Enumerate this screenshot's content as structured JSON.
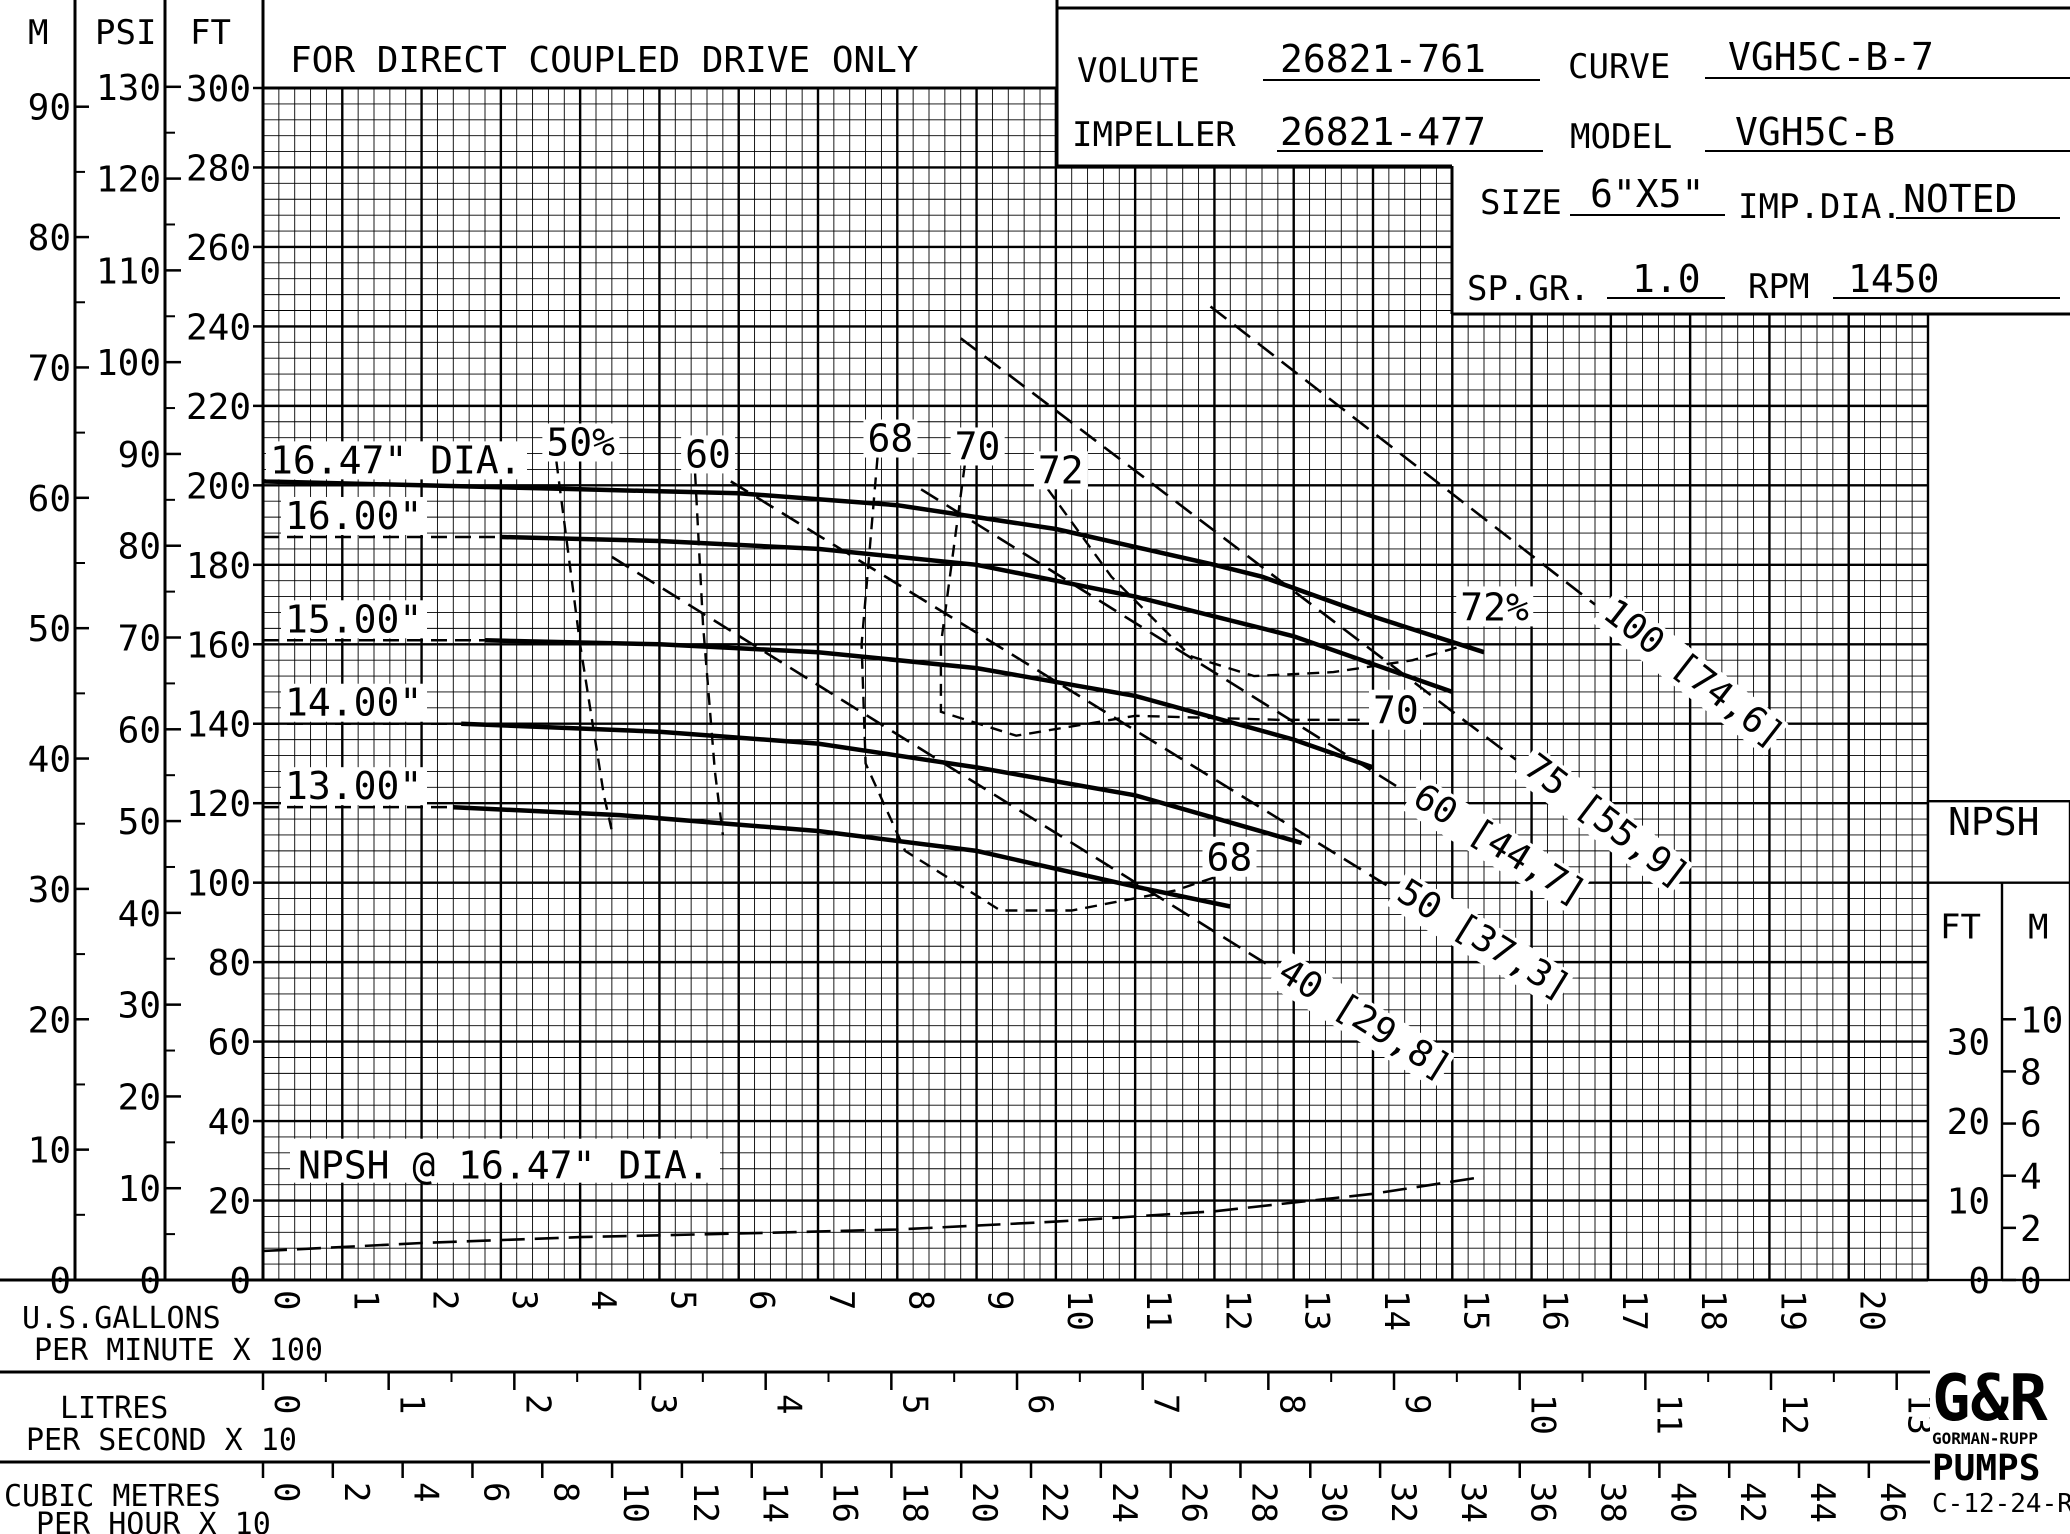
{
  "header": {
    "note": "FOR DIRECT COUPLED DRIVE ONLY",
    "volute_label": "VOLUTE",
    "volute": "26821-761",
    "curve_label": "CURVE",
    "curve": "VGH5C-B-7",
    "impeller_label": "IMPELLER",
    "impeller": "26821-477",
    "model_label": "MODEL",
    "model": "VGH5C-B",
    "size_label": "SIZE",
    "size": "6\"X5\"",
    "impdia_label": "IMP.DIA.",
    "impdia": "NOTED",
    "spgr_label": "SP.GR.",
    "spgr": "1.0",
    "rpm_label": "RPM",
    "rpm": "1450"
  },
  "logo": {
    "mark": "G&R",
    "line1": "GORMAN-RUPP",
    "line2": "PUMPS",
    "code": "C-12-24-R"
  },
  "chart_data": {
    "type": "line",
    "x_axes": [
      {
        "label_line1": "U.S.GALLONS",
        "label_line2": "PER MINUTE X 100",
        "range": [
          0,
          21
        ],
        "ticks": [
          "0",
          "1",
          "2",
          "3",
          "4",
          "5",
          "6",
          "7",
          "8",
          "9",
          "10",
          "11",
          "12",
          "13",
          "14",
          "15",
          "16",
          "17",
          "18",
          "19",
          "20"
        ]
      },
      {
        "label_line1": "LITRES",
        "label_line2": "PER SECOND X 10",
        "range": [
          0,
          13.25
        ],
        "ticks": [
          "0",
          "1",
          "2",
          "3",
          "4",
          "5",
          "6",
          "7",
          "8",
          "9",
          "10",
          "11",
          "12",
          "13"
        ]
      },
      {
        "label_line1": "CUBIC METRES",
        "label_line2": "PER HOUR X 10",
        "range": [
          0,
          47.7
        ],
        "ticks": [
          "0",
          "2",
          "4",
          "6",
          "8",
          "10",
          "12",
          "14",
          "16",
          "18",
          "20",
          "22",
          "24",
          "26",
          "28",
          "30",
          "32",
          "34",
          "36",
          "38",
          "40",
          "42",
          "44",
          "46"
        ]
      }
    ],
    "y_axes": [
      {
        "label": "FT",
        "range": [
          0,
          300
        ],
        "ticks": [
          "0",
          "20",
          "40",
          "60",
          "80",
          "100",
          "120",
          "140",
          "160",
          "180",
          "200",
          "220",
          "240",
          "260",
          "280",
          "300"
        ]
      },
      {
        "label": "PSI",
        "range": [
          0,
          130
        ],
        "ticks": [
          "0",
          "10",
          "20",
          "30",
          "40",
          "50",
          "60",
          "70",
          "80",
          "90",
          "100",
          "110",
          "120",
          "130"
        ]
      },
      {
        "label": "M",
        "range": [
          0,
          91.4
        ],
        "ticks": [
          "0",
          "10",
          "20",
          "30",
          "40",
          "50",
          "60",
          "70",
          "80",
          "90"
        ]
      }
    ],
    "npsh_axis": {
      "title": "NPSH",
      "ft_label": "FT",
      "m_label": "M",
      "ft_ticks": [
        "0",
        "10",
        "20",
        "30"
      ],
      "m_ticks": [
        "0",
        "2",
        "4",
        "6",
        "8",
        "10"
      ]
    },
    "head_curves": [
      {
        "name": "16.47\" DIA.",
        "points": [
          [
            0,
            201
          ],
          [
            2,
            200
          ],
          [
            4,
            199
          ],
          [
            6,
            198
          ],
          [
            8,
            195
          ],
          [
            10,
            189
          ],
          [
            12,
            180
          ],
          [
            12.6,
            177
          ],
          [
            14,
            167
          ],
          [
            15.4,
            158
          ]
        ]
      },
      {
        "name": "16.00\"",
        "points": [
          [
            3,
            187
          ],
          [
            5,
            186
          ],
          [
            7,
            184
          ],
          [
            9,
            180
          ],
          [
            11,
            172
          ],
          [
            13,
            162
          ],
          [
            15,
            148
          ]
        ]
      },
      {
        "name": "15.00\"",
        "points": [
          [
            2.8,
            161
          ],
          [
            5,
            160
          ],
          [
            7,
            158
          ],
          [
            9,
            154
          ],
          [
            11,
            147
          ],
          [
            13,
            136
          ],
          [
            14,
            129
          ]
        ]
      },
      {
        "name": "14.00\"",
        "points": [
          [
            2.5,
            140
          ],
          [
            5,
            138
          ],
          [
            7,
            135
          ],
          [
            9,
            129
          ],
          [
            11,
            122
          ],
          [
            13.1,
            110
          ]
        ]
      },
      {
        "name": "13.00\"",
        "points": [
          [
            2.4,
            119
          ],
          [
            4.5,
            117
          ],
          [
            7,
            113
          ],
          [
            9,
            108
          ],
          [
            11,
            99
          ],
          [
            12.2,
            94
          ]
        ]
      }
    ],
    "efficiency_curves": [
      {
        "label": "50%",
        "points": [
          [
            3.7,
            206
          ],
          [
            4.0,
            160
          ],
          [
            4.3,
            122
          ],
          [
            4.4,
            113
          ]
        ]
      },
      {
        "label": "60",
        "points": [
          [
            5.45,
            203
          ],
          [
            5.55,
            165
          ],
          [
            5.7,
            128
          ],
          [
            5.8,
            112
          ]
        ]
      },
      {
        "label": "68",
        "points": [
          [
            7.75,
            207
          ],
          [
            7.55,
            160
          ],
          [
            7.6,
            130
          ],
          [
            8.1,
            108
          ],
          [
            9.3,
            93
          ],
          [
            10.2,
            93
          ],
          [
            11.5,
            98
          ],
          [
            12.1,
            102
          ]
        ]
      },
      {
        "label": "70",
        "points": [
          [
            8.85,
            205
          ],
          [
            8.55,
            160
          ],
          [
            8.55,
            143
          ],
          [
            9.5,
            137
          ],
          [
            11,
            142
          ],
          [
            12.8,
            141
          ],
          [
            13.9,
            141
          ]
        ]
      },
      {
        "label": "72",
        "points": [
          [
            9.9,
            199
          ],
          [
            10.7,
            177
          ],
          [
            11.7,
            157
          ],
          [
            12.5,
            152
          ],
          [
            13.5,
            153
          ],
          [
            14.5,
            156
          ],
          [
            15.2,
            160
          ]
        ]
      }
    ],
    "hp_lines": [
      {
        "label": "40 [29,8]",
        "points": [
          [
            4.4,
            182
          ],
          [
            12.7,
            79
          ]
        ]
      },
      {
        "label": "50 [37,3]",
        "points": [
          [
            5.9,
            201
          ],
          [
            14.2,
            99
          ]
        ]
      },
      {
        "label": "60 [44,7]",
        "points": [
          [
            8.3,
            199
          ],
          [
            14.4,
            123
          ]
        ]
      },
      {
        "label": "75 [55,9]",
        "points": [
          [
            8.8,
            237
          ],
          [
            15.8,
            131
          ]
        ]
      },
      {
        "label": "100 [74,6]",
        "points": [
          [
            11.95,
            245
          ],
          [
            16.8,
            170
          ]
        ]
      }
    ],
    "npsh_curve": {
      "label": "NPSH @ 16.47\" DIA.",
      "points": [
        [
          0,
          7.3
        ],
        [
          2,
          9.3
        ],
        [
          4,
          10.8
        ],
        [
          6,
          11.7
        ],
        [
          8,
          12.7
        ],
        [
          10,
          14.7
        ],
        [
          12,
          17.3
        ],
        [
          14,
          21.7
        ],
        [
          15.4,
          26
        ]
      ]
    },
    "eff_end_labels": [
      "72%",
      "70",
      "68"
    ],
    "grid": true
  }
}
